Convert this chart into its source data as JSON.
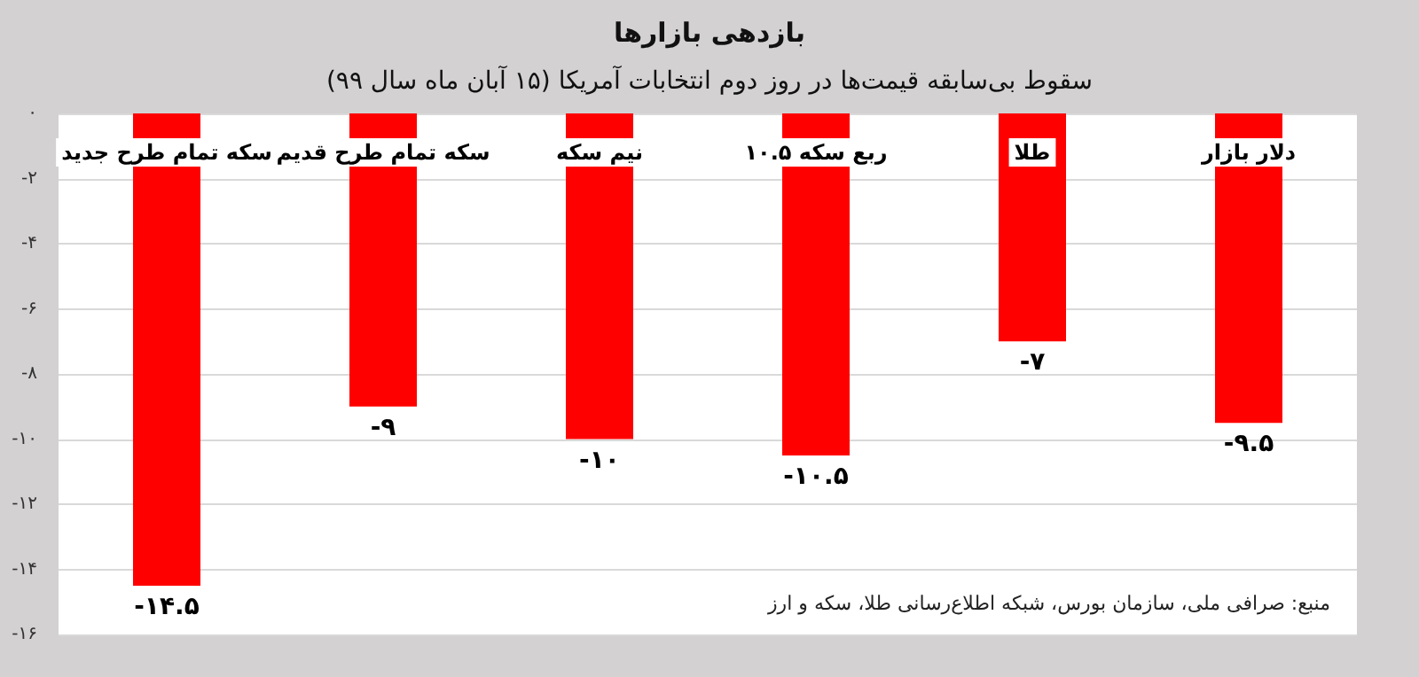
{
  "chart_data": {
    "type": "bar",
    "title": "بازدهی بازارها",
    "subtitle": "سقوط بی‌سابقه قیمت‌ها در روز دوم انتخابات آمریکا (۱۵ آبان ماه سال ۹۹)",
    "categories": [
      "سکه تمام طرح جدید",
      "سکه تمام طرح قدیم",
      "نیم سکه",
      "ربع سکه ۱۰.۵",
      "طلا",
      "دلار بازار"
    ],
    "values": [
      -14.5,
      -9,
      -10,
      -10.5,
      -7,
      -9.5
    ],
    "value_labels": [
      "-۱۴.۵",
      "-۹",
      "-۱۰",
      "-۱۰.۵",
      "-۷",
      "-۹.۵"
    ],
    "color": "#ff0000",
    "ylim": [
      -16,
      0
    ],
    "yticks": [
      {
        "value": 0,
        "label": "۰"
      },
      {
        "value": -2,
        "label": "-۲"
      },
      {
        "value": -4,
        "label": "-۴"
      },
      {
        "value": -6,
        "label": "-۶"
      },
      {
        "value": -8,
        "label": "-۸"
      },
      {
        "value": -10,
        "label": "-۱۰"
      },
      {
        "value": -12,
        "label": "-۱۲"
      },
      {
        "value": -14,
        "label": "-۱۴"
      },
      {
        "value": -16,
        "label": "-۱۶"
      }
    ],
    "grid": "y",
    "annotations": [
      "منبع: صرافی ملی، سازمان بورس، شبکه اطلاع‌رسانی طلا، سکه و ارز"
    ]
  }
}
